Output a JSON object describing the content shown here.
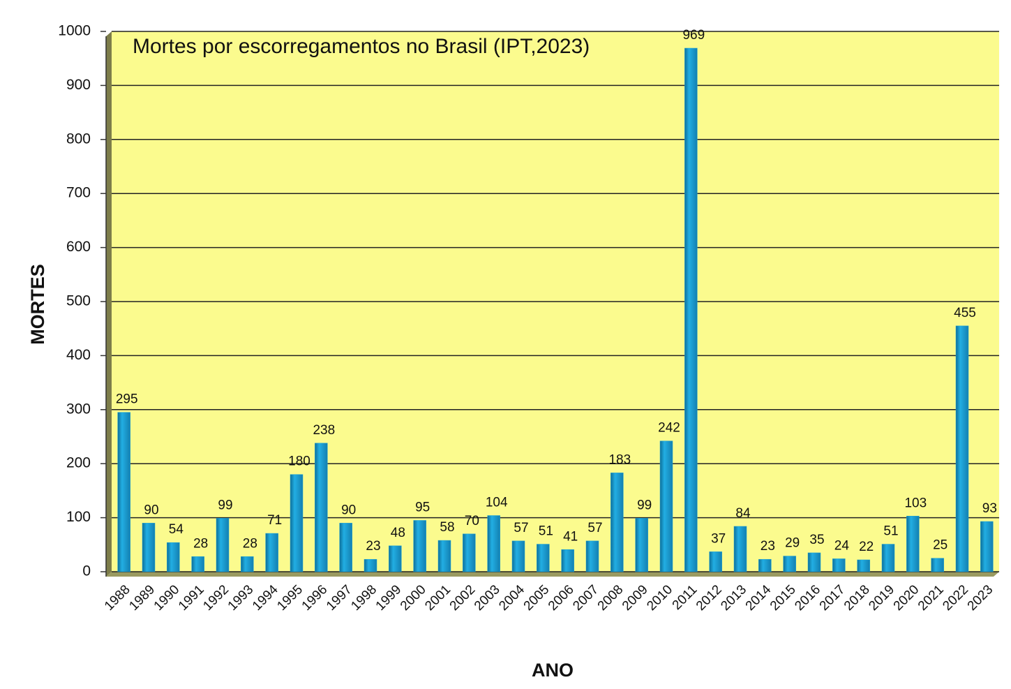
{
  "chart_data": {
    "type": "bar",
    "title": "Mortes por escorregamentos no Brasil (IPT,2023)",
    "x_label": "ANO",
    "y_label": "MORTES",
    "categories": [
      "1988",
      "1989",
      "1990",
      "1991",
      "1992",
      "1993",
      "1994",
      "1995",
      "1996",
      "1997",
      "1998",
      "1999",
      "2000",
      "2001",
      "2002",
      "2003",
      "2004",
      "2005",
      "2006",
      "2007",
      "2008",
      "2009",
      "2010",
      "2011",
      "2012",
      "2013",
      "2014",
      "2015",
      "2016",
      "2017",
      "2018",
      "2019",
      "2020",
      "2021",
      "2022",
      "2023"
    ],
    "values": [
      295,
      90,
      54,
      28,
      99,
      28,
      71,
      180,
      238,
      90,
      23,
      48,
      95,
      58,
      70,
      104,
      57,
      51,
      41,
      57,
      183,
      99,
      242,
      969,
      37,
      84,
      23,
      29,
      35,
      24,
      22,
      51,
      103,
      25,
      455,
      93
    ],
    "color": "#1ea3d8",
    "background": "#fbfb8e",
    "ylim": [
      0,
      1000
    ],
    "yticks": [
      0,
      100,
      200,
      300,
      400,
      500,
      600,
      700,
      800,
      900,
      1000
    ],
    "grid": true
  }
}
